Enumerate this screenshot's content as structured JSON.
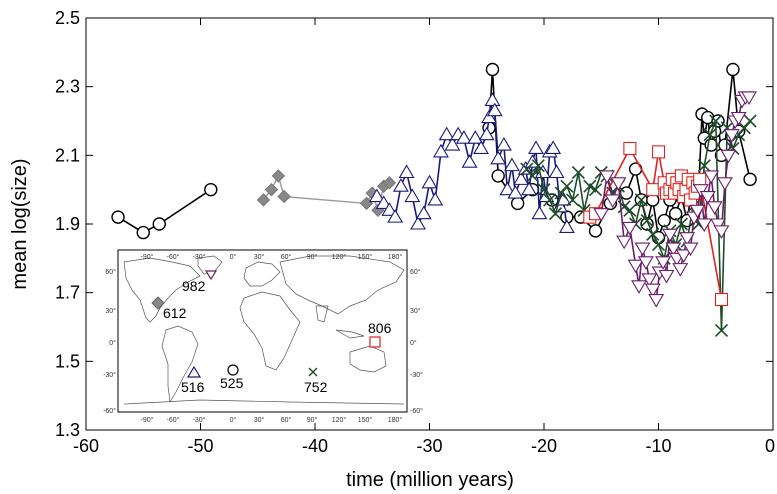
{
  "chart_data": {
    "type": "scatter",
    "title": "",
    "xlabel": "time (million years)",
    "ylabel": "mean log(size)",
    "xlim": [
      -60,
      0
    ],
    "ylim": [
      1.3,
      2.5
    ],
    "xticks": [
      -60,
      -50,
      -40,
      -30,
      -20,
      -10,
      0
    ],
    "xtick_labels": [
      "-60",
      "-50",
      "-40",
      "-30",
      "-20",
      "-10",
      "0"
    ],
    "yticks": [
      1.3,
      1.5,
      1.7,
      1.9,
      2.1,
      2.3,
      2.5
    ],
    "ytick_labels": [
      "1.3",
      "1.5",
      "1.7",
      "1.9",
      "2.1",
      "2.3",
      "2.5"
    ],
    "grid": false,
    "series": [
      {
        "name": "525",
        "marker": "circle",
        "color": "#000000",
        "segments": [
          [
            [
              -57.2,
              1.92
            ],
            [
              -55.0,
              1.875
            ],
            [
              -53.6,
              1.9
            ],
            [
              -49.1,
              2.0
            ]
          ],
          [
            [
              -24.8,
              2.18
            ],
            [
              -24.5,
              2.35
            ],
            [
              -24.0,
              2.04
            ],
            [
              -22.3,
              1.96
            ],
            [
              -21.0,
              2.0
            ],
            [
              -19.3,
              1.97
            ],
            [
              -18.0,
              1.92
            ],
            [
              -16.8,
              1.92
            ],
            [
              -15.5,
              1.88
            ],
            [
              -14.2,
              1.96
            ],
            [
              -12.8,
              1.99
            ],
            [
              -12.0,
              2.06
            ],
            [
              -11.5,
              1.97
            ],
            [
              -11.0,
              1.9
            ],
            [
              -10.5,
              1.97
            ],
            [
              -10.0,
              1.86
            ],
            [
              -9.5,
              1.91
            ],
            [
              -9.0,
              1.97
            ],
            [
              -8.5,
              1.93
            ],
            [
              -8.0,
              1.98
            ],
            [
              -7.5,
              1.91
            ],
            [
              -7.0,
              2.02
            ],
            [
              -6.5,
              1.99
            ],
            [
              -6.2,
              2.22
            ],
            [
              -6.0,
              2.15
            ],
            [
              -5.7,
              2.21
            ],
            [
              -5.4,
              2.13
            ],
            [
              -5.1,
              2.17
            ],
            [
              -4.8,
              2.2
            ],
            [
              -4.5,
              2.1
            ],
            [
              -4.2,
              2.13
            ],
            [
              -3.5,
              2.35
            ],
            [
              -3.0,
              2.17
            ],
            [
              -2.0,
              2.03
            ]
          ]
        ]
      },
      {
        "name": "612",
        "marker": "diamond",
        "color": "#888888",
        "segments": [
          [
            [
              -44.5,
              1.97
            ],
            [
              -43.8,
              2.0
            ],
            [
              -43.2,
              2.04
            ],
            [
              -42.7,
              1.98
            ],
            [
              -35.5,
              1.96
            ],
            [
              -35.0,
              1.99
            ],
            [
              -34.5,
              1.94
            ],
            [
              -34.0,
              2.01
            ],
            [
              -33.5,
              2.02
            ]
          ]
        ]
      },
      {
        "name": "516",
        "marker": "triangle-up",
        "color": "#1a1a7a",
        "segments": [
          [
            [
              -34.6,
              1.98
            ],
            [
              -34.0,
              1.96
            ],
            [
              -33.5,
              1.94
            ],
            [
              -33.0,
              1.92
            ],
            [
              -32.5,
              2.01
            ],
            [
              -32.0,
              2.05
            ],
            [
              -31.5,
              1.98
            ],
            [
              -31.0,
              1.9
            ],
            [
              -30.5,
              1.93
            ],
            [
              -30.0,
              2.02
            ],
            [
              -29.5,
              1.97
            ],
            [
              -29.0,
              2.11
            ],
            [
              -28.5,
              2.16
            ],
            [
              -28.0,
              2.13
            ],
            [
              -27.5,
              2.16
            ],
            [
              -27.0,
              2.15
            ],
            [
              -26.5,
              2.08
            ],
            [
              -26.0,
              2.15
            ],
            [
              -25.5,
              2.12
            ],
            [
              -25.0,
              2.16
            ],
            [
              -24.8,
              2.21
            ],
            [
              -24.5,
              2.26
            ],
            [
              -24.3,
              2.23
            ],
            [
              -24.0,
              2.09
            ],
            [
              -23.5,
              2.13
            ],
            [
              -23.2,
              2.0
            ],
            [
              -22.8,
              2.07
            ],
            [
              -22.5,
              1.99
            ],
            [
              -22.0,
              2.03
            ],
            [
              -21.6,
              2.06
            ],
            [
              -21.3,
              2.0
            ],
            [
              -21.0,
              2.08
            ],
            [
              -20.7,
              2.12
            ],
            [
              -20.4,
              1.93
            ],
            [
              -20.1,
              2.05
            ],
            [
              -19.8,
              1.98
            ],
            [
              -19.5,
              2.11
            ],
            [
              -19.2,
              2.12
            ],
            [
              -18.9,
              2.05
            ],
            [
              -18.6,
              1.95
            ],
            [
              -18.3,
              1.97
            ],
            [
              -18.0,
              1.89
            ]
          ]
        ]
      },
      {
        "name": "752",
        "marker": "x",
        "color": "#1f4d2a",
        "segments": [
          [
            [
              -21.5,
              2.06
            ],
            [
              -21.0,
              2.04
            ],
            [
              -20.5,
              2.07
            ],
            [
              -20.0,
              2.0
            ],
            [
              -19.5,
              1.97
            ],
            [
              -19.0,
              1.93
            ],
            [
              -18.5,
              1.99
            ],
            [
              -18.0,
              2.01
            ],
            [
              -17.5,
              1.97
            ],
            [
              -17.0,
              2.05
            ],
            [
              -16.5,
              1.94
            ],
            [
              -16.0,
              2.01
            ],
            [
              -15.5,
              2.0
            ],
            [
              -15.0,
              2.05
            ],
            [
              -14.5,
              2.04
            ],
            [
              -14.0,
              1.99
            ],
            [
              -13.5,
              2.01
            ],
            [
              -13.0,
              1.95
            ],
            [
              -12.5,
              1.94
            ],
            [
              -12.0,
              1.9
            ],
            [
              -11.5,
              1.97
            ],
            [
              -11.0,
              1.91
            ],
            [
              -10.5,
              1.87
            ],
            [
              -10.0,
              1.84
            ],
            [
              -9.5,
              1.8
            ],
            [
              -9.0,
              1.88
            ],
            [
              -8.5,
              1.84
            ],
            [
              -8.0,
              1.9
            ],
            [
              -7.5,
              1.85
            ],
            [
              -7.0,
              1.95
            ],
            [
              -6.5,
              1.9
            ],
            [
              -6.0,
              2.07
            ],
            [
              -5.5,
              2.16
            ],
            [
              -5.0,
              2.2
            ],
            [
              -4.5,
              1.59
            ],
            [
              -4.0,
              2.18
            ],
            [
              -3.5,
              2.12
            ],
            [
              -3.0,
              2.16
            ],
            [
              -2.5,
              2.18
            ],
            [
              -2.0,
              2.2
            ]
          ]
        ]
      },
      {
        "name": "806",
        "marker": "square",
        "color": "#e0231f",
        "segments": [
          [
            [
              -16.0,
              1.92
            ],
            [
              -15.5,
              1.93
            ],
            [
              -12.5,
              2.12
            ],
            [
              -10.5,
              2.0
            ],
            [
              -10.0,
              2.11
            ],
            [
              -9.5,
              2.02
            ],
            [
              -9.3,
              1.99
            ],
            [
              -9.0,
              2.0
            ],
            [
              -8.8,
              2.03
            ],
            [
              -8.6,
              1.99
            ],
            [
              -8.4,
              2.02
            ],
            [
              -8.2,
              2.0
            ],
            [
              -8.0,
              2.04
            ],
            [
              -7.8,
              1.98
            ],
            [
              -7.6,
              2.0
            ],
            [
              -7.4,
              2.03
            ],
            [
              -7.2,
              1.97
            ],
            [
              -7.0,
              2.02
            ],
            [
              -6.8,
              1.99
            ],
            [
              -6.6,
              2.01
            ],
            [
              -6.4,
              2.03
            ],
            [
              -4.5,
              1.68
            ]
          ]
        ]
      },
      {
        "name": "982",
        "marker": "triangle-down",
        "color": "#6a1e6a",
        "segments": [
          [
            [
              -15.0,
              1.93
            ],
            [
              -14.5,
              2.04
            ],
            [
              -14.0,
              1.97
            ],
            [
              -13.5,
              2.02
            ],
            [
              -13.0,
              1.85
            ],
            [
              -12.5,
              1.89
            ],
            [
              -12.0,
              1.78
            ],
            [
              -11.7,
              1.72
            ],
            [
              -11.4,
              1.83
            ],
            [
              -11.1,
              1.79
            ],
            [
              -10.8,
              1.74
            ],
            [
              -10.5,
              1.71
            ],
            [
              -10.2,
              1.68
            ],
            [
              -9.9,
              1.76
            ],
            [
              -9.6,
              1.79
            ],
            [
              -9.3,
              1.75
            ],
            [
              -9.0,
              1.87
            ],
            [
              -8.7,
              1.83
            ],
            [
              -8.4,
              1.8
            ],
            [
              -8.1,
              1.77
            ],
            [
              -7.8,
              1.81
            ],
            [
              -7.5,
              1.86
            ],
            [
              -7.2,
              1.83
            ],
            [
              -6.9,
              1.92
            ],
            [
              -6.6,
              1.94
            ],
            [
              -6.3,
              2.0
            ],
            [
              -6.0,
              1.9
            ],
            [
              -5.7,
              1.98
            ],
            [
              -5.4,
              2.04
            ],
            [
              -5.1,
              1.95
            ],
            [
              -4.8,
              1.9
            ],
            [
              -4.5,
              1.88
            ],
            [
              -4.2,
              2.02
            ],
            [
              -3.9,
              2.1
            ],
            [
              -3.6,
              2.16
            ],
            [
              -3.3,
              2.2
            ],
            [
              -3.0,
              2.21
            ],
            [
              -2.7,
              2.26
            ],
            [
              -2.4,
              2.27
            ],
            [
              -2.1,
              2.27
            ]
          ]
        ]
      }
    ],
    "annotations": [
      {
        "text": "982",
        "marker": "triangle-down"
      },
      {
        "text": "612",
        "marker": "diamond"
      },
      {
        "text": "806",
        "marker": "square"
      },
      {
        "text": "516",
        "marker": "triangle-up"
      },
      {
        "text": "525",
        "marker": "circle"
      },
      {
        "text": "752",
        "marker": "x"
      }
    ],
    "inset_map": {
      "lon_ticks": [
        "-90°",
        "-60°",
        "-30°",
        "0°",
        "30°",
        "60°",
        "90°",
        "120°",
        "150°",
        "180°"
      ],
      "lat_ticks": [
        "60°",
        "30°",
        "0°",
        "-30°",
        "-60°"
      ]
    }
  }
}
